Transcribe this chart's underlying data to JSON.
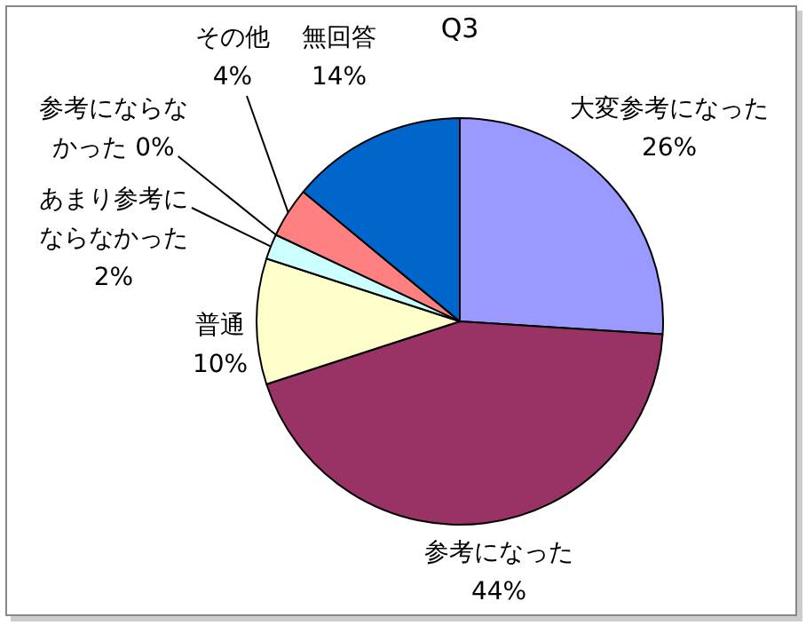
{
  "chart_data": {
    "type": "pie",
    "title": "Q3",
    "categories": [
      "大変参考になった",
      "参考になった",
      "普通",
      "あまり参考にならなかった",
      "参考にならなかった",
      "その他",
      "無回答"
    ],
    "values": [
      26,
      44,
      10,
      2,
      0,
      4,
      14
    ],
    "colors": [
      "#9999ff",
      "#993366",
      "#ffffcc",
      "#ccffff",
      "#660066",
      "#ff8080",
      "#0066cc"
    ],
    "value_labels": [
      "26%",
      "44%",
      "10%",
      "2%",
      "0%",
      "4%",
      "14%"
    ],
    "legend": false
  }
}
